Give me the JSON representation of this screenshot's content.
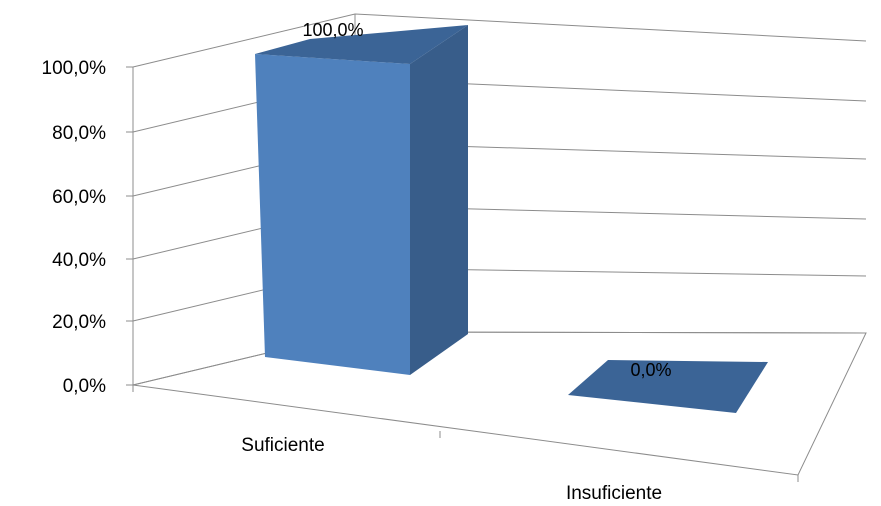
{
  "chart_data": {
    "type": "bar",
    "style": "3d-column",
    "categories": [
      "Suficiente",
      "Insuficiente"
    ],
    "values": [
      100.0,
      0.0
    ],
    "data_labels": [
      "100,0%",
      "0,0%"
    ],
    "yticks": [
      "0,0%",
      "20,0%",
      "40,0%",
      "60,0%",
      "80,0%",
      "100,0%"
    ],
    "ylim": [
      0,
      100
    ],
    "ytick_step": 20,
    "grid": true,
    "legend": "none",
    "title": "",
    "xlabel": "",
    "ylabel": ""
  },
  "colors": {
    "bar_front": "#4F81BD",
    "bar_side": "#385D8A",
    "bar_top": "#3B6496",
    "grid": "#8C8C8C",
    "axis": "#8C8C8C"
  }
}
